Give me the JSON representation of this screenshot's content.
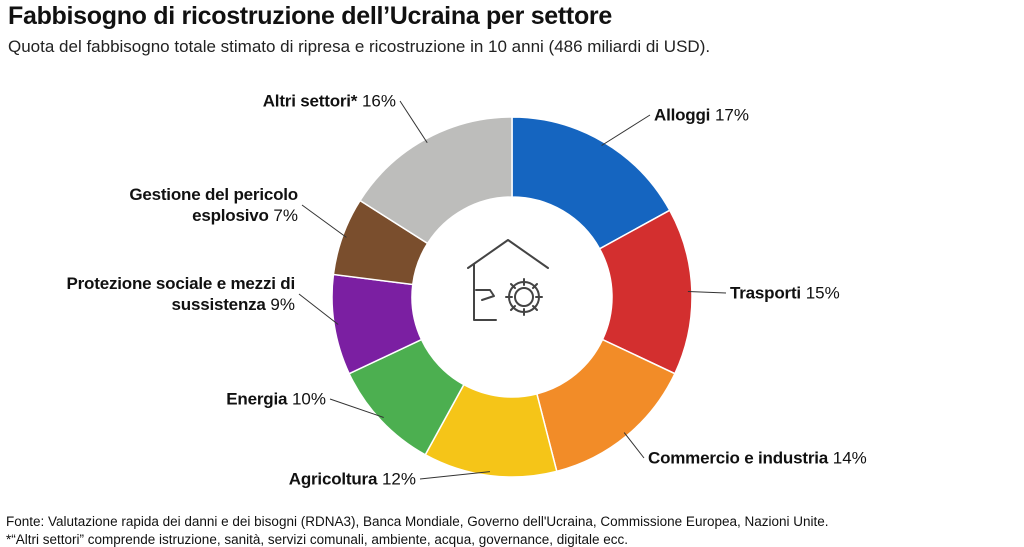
{
  "chart_data": {
    "type": "donut",
    "title": "Fabbisogno di ricostruzione dell’Ucraina per settore",
    "subtitle": "Quota del fabbisogno totale stimato di ripresa e ricostruzione in 10 anni (486 miliardi di USD).",
    "categories": [
      "Alloggi",
      "Trasporti",
      "Commercio e industria",
      "Agricoltura",
      "Energia",
      "Protezione sociale e mezzi di sussistenza",
      "Gestione del pericolo esplosivo",
      "Altri settori*"
    ],
    "values": [
      17,
      15,
      14,
      12,
      10,
      9,
      7,
      16
    ],
    "value_labels": [
      "17%",
      "15%",
      "14%",
      "12%",
      "10%",
      "9%",
      "7%",
      "16%"
    ],
    "colors": [
      "#1565c0",
      "#d32f2f",
      "#f28c28",
      "#f5c518",
      "#4caf50",
      "#7b1fa2",
      "#7a4e2d",
      "#bdbdbb"
    ],
    "source": "Fonte: Valutazione rapida dei danni e dei bisogni (RDNA3), Banca Mondiale, Governo dell'Ucraina, Commissione Europea, Nazioni Unite.",
    "note": "*“Altri settori” comprende istruzione, sanità, servizi comunali, ambiente, acqua, governance, digitale ecc."
  }
}
